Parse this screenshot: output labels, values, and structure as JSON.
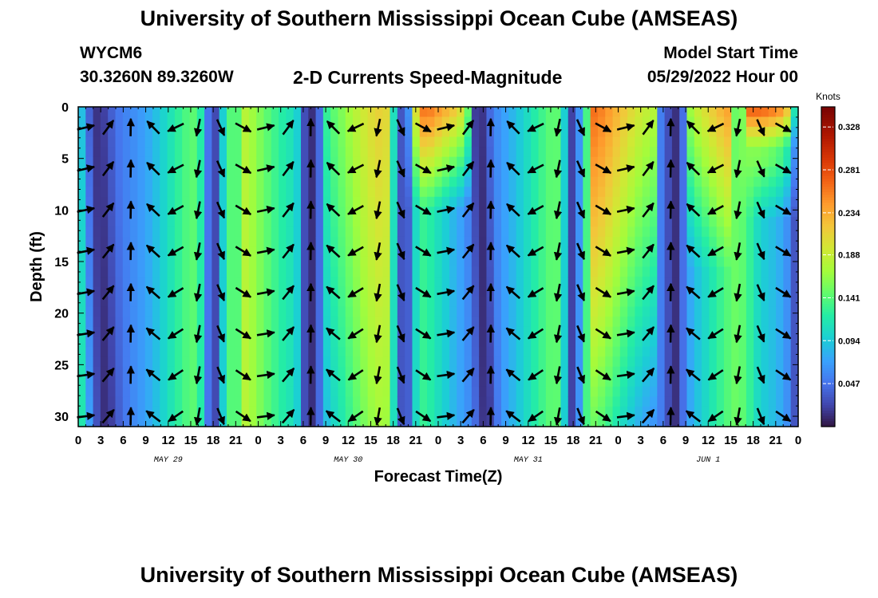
{
  "header": {
    "title": "University of Southern Mississippi Ocean Cube (AMSEAS)",
    "station_id": "WYCM6",
    "station_coords": "30.3260N  89.3260W",
    "subtitle": "2-D Currents Speed-Magnitude",
    "model_start_label": "Model Start Time",
    "model_start_value": "05/29/2022 Hour 00"
  },
  "footer": {
    "title": "University of Southern Mississippi Ocean Cube (AMSEAS)"
  },
  "chart_data": {
    "type": "heatmap",
    "title": "2-D Currents Speed-Magnitude",
    "xlabel": "Forecast Time(Z)",
    "ylabel": "Depth (ft)",
    "xlim": [
      0,
      96
    ],
    "ylim": [
      31,
      0
    ],
    "x_ticks": [
      0,
      3,
      6,
      9,
      12,
      15,
      18,
      21,
      24,
      27,
      30,
      33,
      36,
      39,
      42,
      45,
      48,
      51,
      54,
      57,
      60,
      63,
      66,
      69,
      72,
      75,
      78,
      81,
      84,
      87,
      90,
      93,
      96
    ],
    "x_tick_labels": [
      "0",
      "3",
      "6",
      "9",
      "12",
      "15",
      "18",
      "21",
      "0",
      "3",
      "6",
      "9",
      "12",
      "15",
      "18",
      "21",
      "0",
      "3",
      "6",
      "9",
      "12",
      "15",
      "18",
      "21",
      "0",
      "3",
      "6",
      "9",
      "12",
      "15",
      "18",
      "21",
      "0"
    ],
    "day_labels": [
      {
        "x": 12,
        "label": "MAY 29"
      },
      {
        "x": 36,
        "label": "MAY 30"
      },
      {
        "x": 60,
        "label": "MAY 31"
      },
      {
        "x": 84,
        "label": "JUN 1"
      }
    ],
    "y_ticks": [
      0,
      5,
      10,
      15,
      20,
      25,
      30
    ],
    "y_tick_labels": [
      "0",
      "5",
      "10",
      "15",
      "20",
      "25",
      "30"
    ],
    "colorbar": {
      "title": "Knots",
      "ticks": [
        0.047,
        0.094,
        0.141,
        0.188,
        0.234,
        0.281,
        0.328
      ],
      "tick_labels": [
        "0.047",
        "0.094",
        "0.141",
        "0.188",
        "0.234",
        "0.281",
        "0.328"
      ],
      "range": [
        0,
        0.35
      ],
      "colormap": "turbo"
    },
    "grid": false,
    "vectors": "black arrows indicate current direction at sampled depth/time points"
  }
}
